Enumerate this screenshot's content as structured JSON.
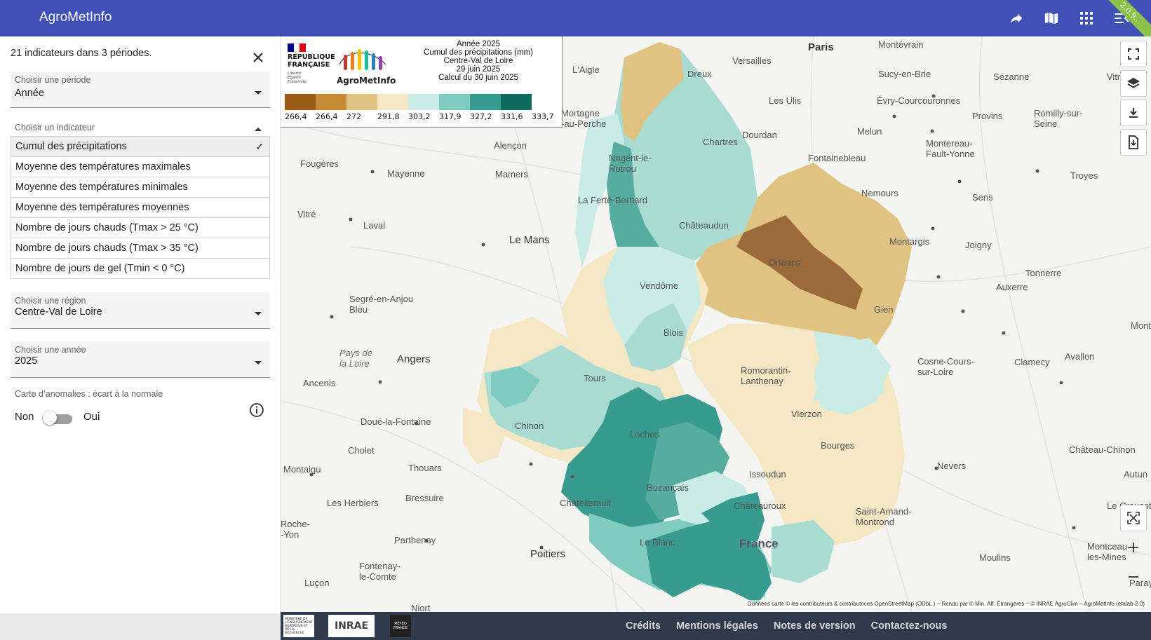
{
  "header": {
    "title": "AgroMetInfo",
    "version_ribbon": "2.0.9...",
    "icons": [
      "share-icon",
      "book-map-icon",
      "apps-grid-icon",
      "menu-collapse-icon"
    ]
  },
  "sidebar": {
    "summary": "21 indicateurs dans 3 périodes.",
    "period": {
      "label": "Choisir une période",
      "value": "Année"
    },
    "indicator": {
      "label": "Choisir un indicateur",
      "options": [
        {
          "label": "Cumul des précipitations",
          "selected": true,
          "check": "✓"
        },
        {
          "label": "Moyenne des températures maximales"
        },
        {
          "label": "Moyenne des températures minimales"
        },
        {
          "label": "Moyenne des températures moyennes"
        },
        {
          "label": "Nombre de jours chauds (Tmax > 25 °C)"
        },
        {
          "label": "Nombre de jours chauds (Tmax > 35 °C)"
        },
        {
          "label": "Nombre de jours de gel (Tmin < 0 °C)"
        }
      ]
    },
    "region": {
      "label": "Choisir une région",
      "value": "Centre-Val de Loire"
    },
    "year": {
      "label": "Choisir une année",
      "value": "2025"
    },
    "anomaly": {
      "label": "Carte d’anomalies : écart à la normale",
      "off": "Non",
      "on": "Oui",
      "enabled": false
    }
  },
  "legend": {
    "rf_text": "RÉPUBLIQUE FRANÇAISE",
    "rf_motto": "Liberté Égalité Fraternité",
    "logo_name": "AgroMetInfo",
    "title_lines": [
      "Année 2025",
      "Cumul des précipitations (mm)",
      "Centre-Val de Loire",
      "29 juin 2025",
      "Calcul du 30 juin 2025"
    ],
    "colors": [
      "#9b5a16",
      "#c68a35",
      "#dfc382",
      "#f6e7c4",
      "#c9ece6",
      "#7fcbbf",
      "#389b8f",
      "#0e6a5d"
    ],
    "values": [
      "266,4",
      "266,4",
      "272",
      "291,8",
      "303,2",
      "317,9",
      "327,2",
      "331,6",
      "333,7"
    ]
  },
  "map": {
    "labels": {
      "paris": "Paris",
      "versailles": "Versailles",
      "montevrain": "Montévrain",
      "laigle": "L'Aigle",
      "dreux": "Dreux",
      "sucy": "Sucy-en-Brie",
      "sezanne": "Sézanne",
      "vitry": "Vitry-l",
      "lesulis": "Les Ulis",
      "evry": "Évry-Courcouronnes",
      "provins": "Provins",
      "romilly": "Romilly-sur-\nSeine",
      "mortagne": "Mortagne\n-au-Perche",
      "chartres": "Chartres",
      "dourdan": "Dourdan",
      "melun": "Melun",
      "montereau": "Montereau-\nFault-Yonne",
      "alencon": "Alençon",
      "nogent": "Nogent-le-\nRotrou",
      "fontainebleau": "Fontainebleau",
      "troyes": "Troyes",
      "fougeres": "Fougères",
      "mayenne": "Mayenne",
      "mamers": "Mamers",
      "nemours": "Nemours",
      "sens": "Sens",
      "ferte": "La Ferté-Bernard",
      "vitre": "Vitré",
      "laval": "Laval",
      "chateaudun": "Châteaudun",
      "montargis": "Montargis",
      "lemans": "Le Mans",
      "joigny": "Joigny",
      "orleans": "Orléans",
      "tonnerre": "Tonnerre",
      "vendome": "Vendôme",
      "auxerre": "Auxerre",
      "segre": "Segré-en-Anjou\nBleu",
      "gien": "Gien",
      "blois": "Blois",
      "paysloire": "Pays de\nla Loire",
      "angers": "Angers",
      "cosne": "Cosne-Cours-\nsur-Loire",
      "clamecy": "Clamecy",
      "avallon": "Avallon",
      "ancenis": "Ancenis",
      "tours": "Tours",
      "romorantin": "Romorantin-\nLanthenay",
      "doue": "Doué-la-Fontaine",
      "chinon": "Chinon",
      "vierzon": "Vierzon",
      "cholet": "Cholet",
      "loches": "Loches",
      "bourges": "Bourges",
      "chateauchinon": "Château-Chinon",
      "montaigu": "Montaigu",
      "thouars": "Thouars",
      "nevers": "Nevers",
      "autun": "Autun",
      "issoudun": "Issoudun",
      "buzancais": "Buzançais",
      "herbiers": "Les Herbiers",
      "bressuire": "Bressuire",
      "chatellerault": "Châtellerault",
      "chateauroux": "Châteauroux",
      "lecreusot": "Le Creusot",
      "roche": "Roche-\n-Yon",
      "saintamand": "Saint-Amand-\nMontrond",
      "parthenay": "Parthenay",
      "leblanc": "Le Blanc",
      "france": "France",
      "montceau": "Montceau-\nles-Mines",
      "poitiers": "Poitiers",
      "moulins": "Moulins",
      "fontenay": "Fontenay-\nle-Comte",
      "lucon": "Luçon",
      "paray": "Paray",
      "niort": "Niort",
      "mont": "Mont"
    },
    "buttons": [
      "fullscreen-icon",
      "layers-icon",
      "download-icon",
      "export-file-icon"
    ],
    "zoom_buttons": [
      "fit-extent-icon",
      "zoom-in-icon",
      "zoom-out-icon"
    ],
    "attribution": "Données carte © les contributeurs & contributrices OpenStreetMap (ODbL ) ~ Rendu par © Min. Aff. Étrangères ~ © INRAE AgroClim ~ AgroMetInfo (etalab-2.0)"
  },
  "footer": {
    "logos": [
      "MINISTÈRE DE L'ENSEIGNEMENT SUPÉRIEUR ET DE LA RECHERCHE",
      "INRAE",
      "MÉTÉO FRANCE"
    ],
    "links": [
      "Crédits",
      "Mentions légales",
      "Notes de version",
      "Contactez-nous"
    ]
  }
}
